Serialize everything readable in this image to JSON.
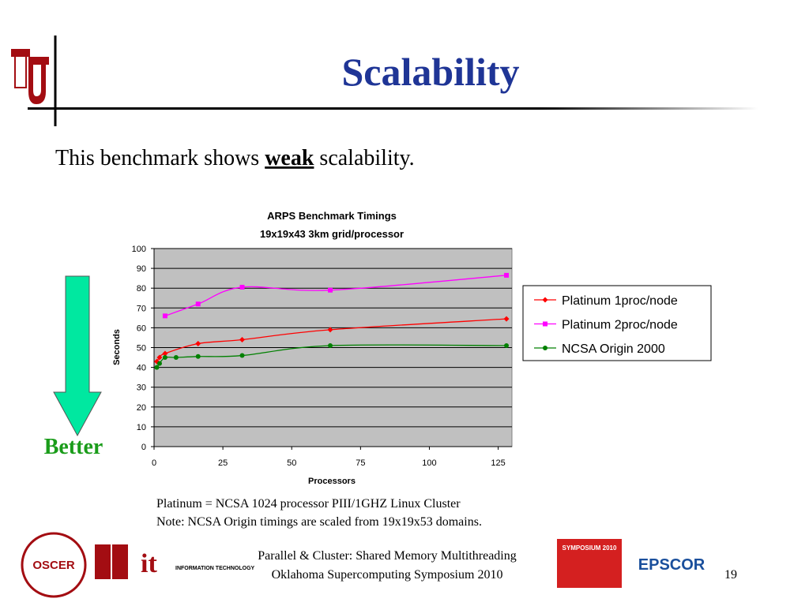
{
  "title": "Scalability",
  "body": {
    "prefix": "This benchmark shows ",
    "emphasis": "weak",
    "suffix": " scalability."
  },
  "arrow_label": "Better",
  "chart_data": {
    "type": "line",
    "title": [
      "ARPS Benchmark Timings",
      "19x19x43 3km grid/processor"
    ],
    "x_label": "Processors",
    "y_label": "Seconds",
    "xlim": [
      0,
      130
    ],
    "xticks": [
      0,
      25,
      50,
      75,
      100,
      125
    ],
    "ylim": [
      0,
      100
    ],
    "yticks": [
      0,
      10,
      20,
      30,
      40,
      50,
      60,
      70,
      80,
      90,
      100
    ],
    "grid": true,
    "legend": "right",
    "series": [
      {
        "name": "Platinum 1proc/node",
        "color": "#ff0000",
        "marker": "diamond",
        "x": [
          1,
          2,
          4,
          16,
          32,
          64,
          128
        ],
        "values": [
          43,
          45,
          47,
          52,
          54,
          59,
          64.5
        ]
      },
      {
        "name": "Platinum 2proc/node",
        "color": "#ff00ff",
        "marker": "square",
        "x": [
          4,
          16,
          32,
          64,
          128
        ],
        "values": [
          66,
          72,
          80.5,
          79,
          86.5
        ]
      },
      {
        "name": "NCSA Origin 2000",
        "color": "#008000",
        "marker": "circle",
        "x": [
          1,
          2,
          4,
          8,
          16,
          32,
          64,
          128
        ],
        "values": [
          40,
          42,
          45,
          45,
          45.5,
          46,
          51,
          51
        ]
      }
    ]
  },
  "notes": [
    "Platinum = NCSA 1024 processor PIII/1GHZ Linux Cluster",
    "Note: NCSA Origin timings are scaled from 19x19x53 domains."
  ],
  "footer": [
    "Parallel & Cluster: Shared Memory Multithreading",
    "Oklahoma Supercomputing Symposium 2010"
  ],
  "page_number": "19",
  "logos": [
    "OSCER",
    "INFORMATION TECHNOLOGY",
    "SYMPOSIUM 2010",
    "EPSCOR"
  ]
}
